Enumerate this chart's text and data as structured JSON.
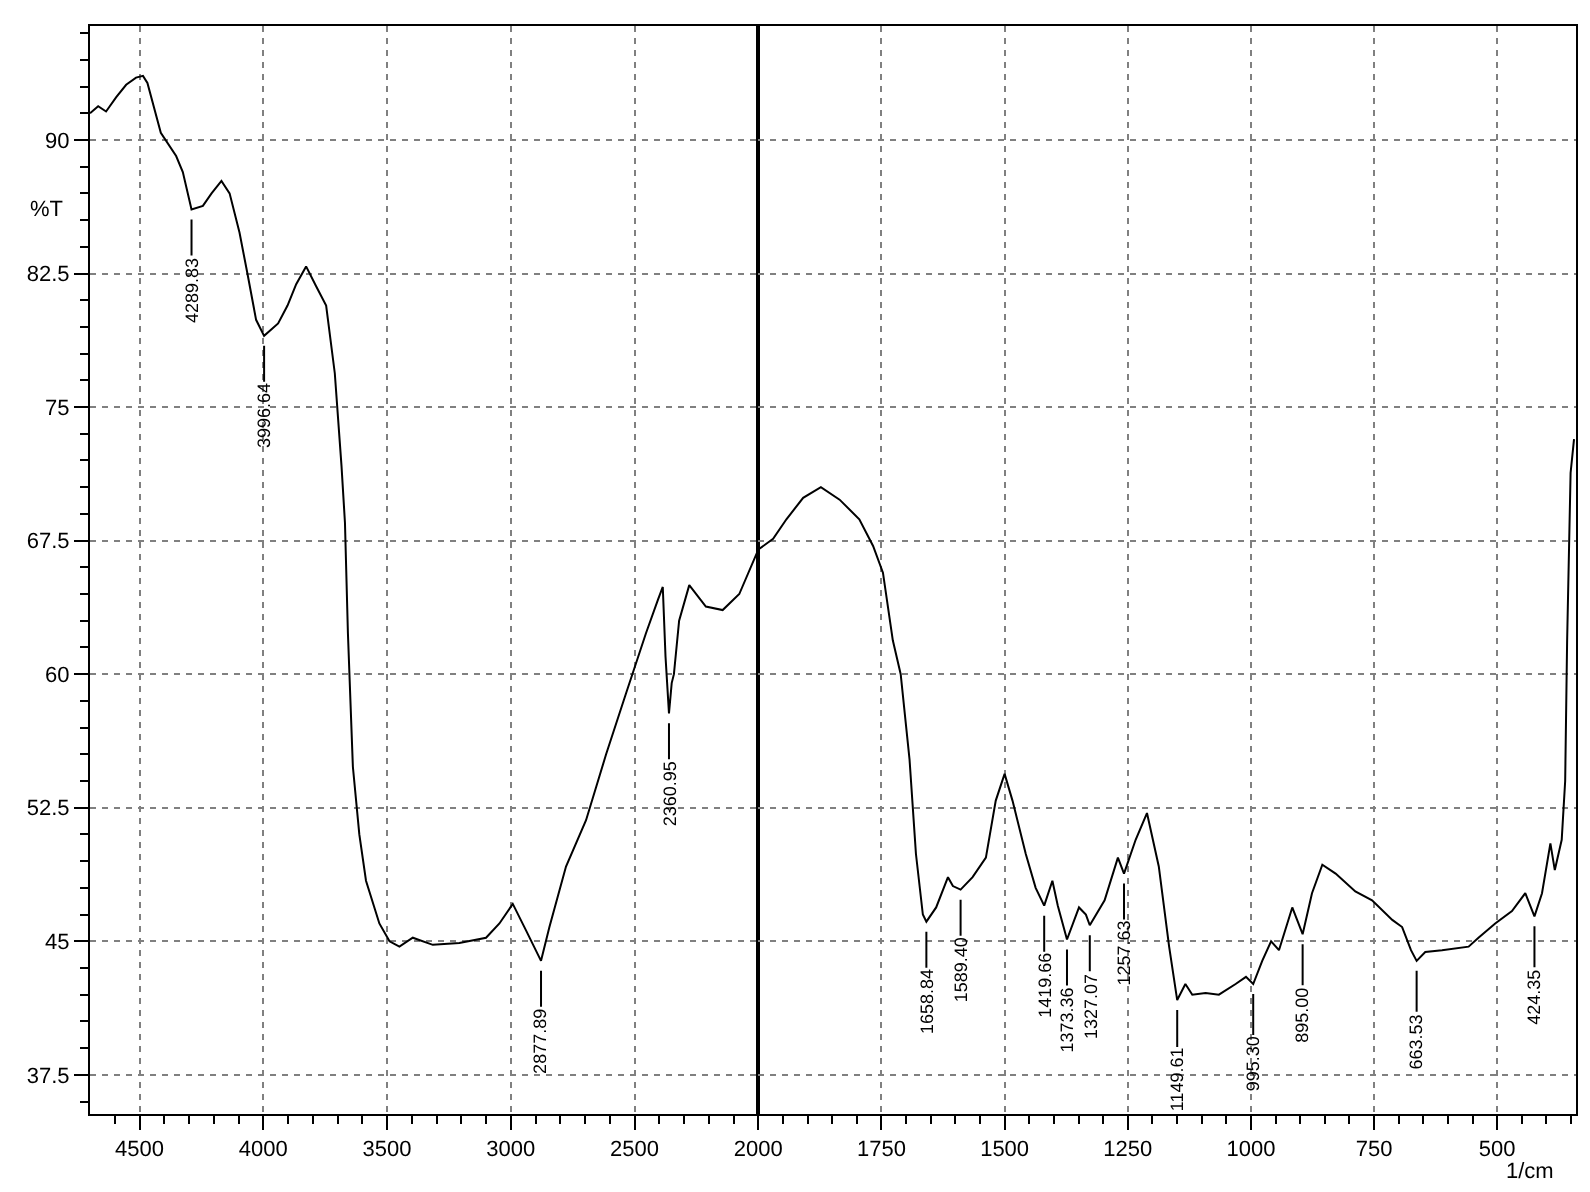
{
  "chart_data": [
    {
      "type": "line",
      "ylabel": "%T",
      "grid": true,
      "line_style": "solid",
      "xlim": [
        4700,
        2000
      ],
      "xticks": [
        {
          "value": 4600,
          "label": null
        },
        4500,
        {
          "value": 4400,
          "label": null
        },
        {
          "value": 4300,
          "label": null
        },
        {
          "value": 4200,
          "label": null
        },
        {
          "value": 4100,
          "label": null
        },
        4000,
        {
          "value": 3900,
          "label": null
        },
        {
          "value": 3800,
          "label": null
        },
        {
          "value": 3700,
          "label": null
        },
        {
          "value": 3600,
          "label": null
        },
        3500,
        {
          "value": 3400,
          "label": null
        },
        {
          "value": 3300,
          "label": null
        },
        {
          "value": 3200,
          "label": null
        },
        {
          "value": 3100,
          "label": null
        },
        3000,
        {
          "value": 2900,
          "label": null
        },
        {
          "value": 2800,
          "label": null
        },
        {
          "value": 2700,
          "label": null
        },
        {
          "value": 2600,
          "label": null
        },
        2500,
        {
          "value": 2400,
          "label": null
        },
        {
          "value": 2300,
          "label": null
        },
        {
          "value": 2200,
          "label": null
        },
        {
          "value": 2100,
          "label": null
        }
      ],
      "ylim": [
        35.3,
        96.4
      ],
      "yticks": [
        {
          "value": 36,
          "label": null
        },
        37.5,
        {
          "value": 39,
          "label": null
        },
        {
          "value": 40.5,
          "label": null
        },
        {
          "value": 42,
          "label": null
        },
        {
          "value": 43.5,
          "label": null
        },
        45,
        {
          "value": 46.5,
          "label": null
        },
        {
          "value": 48,
          "label": null
        },
        {
          "value": 49.5,
          "label": null
        },
        {
          "value": 51,
          "label": null
        },
        52.5,
        {
          "value": 54,
          "label": null
        },
        {
          "value": 55.5,
          "label": null
        },
        {
          "value": 57,
          "label": null
        },
        {
          "value": 58.5,
          "label": null
        },
        60,
        {
          "value": 61.5,
          "label": null
        },
        {
          "value": 63,
          "label": null
        },
        {
          "value": 64.5,
          "label": null
        },
        {
          "value": 66,
          "label": null
        },
        67.5,
        {
          "value": 69,
          "label": null
        },
        {
          "value": 70.5,
          "label": null
        },
        {
          "value": 72,
          "label": null
        },
        {
          "value": 73.5,
          "label": null
        },
        75,
        {
          "value": 76.5,
          "label": null
        },
        {
          "value": 78,
          "label": null
        },
        {
          "value": 79.5,
          "label": null
        },
        {
          "value": 81,
          "label": null
        },
        82.5,
        {
          "value": 84,
          "label": null
        },
        {
          "value": 85.5,
          "label": null
        },
        {
          "value": 87,
          "label": null
        },
        {
          "value": 88.5,
          "label": null
        },
        90,
        {
          "value": 91.5,
          "label": null
        },
        {
          "value": 93,
          "label": null
        },
        {
          "value": 94.5,
          "label": null
        },
        {
          "value": 96,
          "label": null
        }
      ],
      "series": [
        {
          "color": "#000000",
          "x": [
            4700,
            4667,
            4635,
            4594,
            4554,
            4514,
            4486,
            4468,
            4414,
            4352,
            4325,
            4289.83,
            4244,
            4209,
            4169,
            4136,
            4096,
            4064,
            4029,
            3996.64,
            3940,
            3902,
            3867,
            3827,
            3787,
            3746,
            3711,
            3684,
            3670,
            3658,
            3638,
            3612,
            3585,
            3531,
            3490,
            3450,
            3396,
            3315,
            3208,
            3100,
            3046,
            2992,
            2938,
            2877.89,
            2844,
            2777,
            2696,
            2615,
            2535,
            2454,
            2405,
            2386,
            2375,
            2360.95,
            2350,
            2341,
            2320,
            2279,
            2212,
            2144,
            2077,
            2000
          ],
          "values": [
            91.5,
            91.9,
            91.6,
            92.4,
            93.1,
            93.5,
            93.6,
            93.2,
            90.4,
            89.1,
            88.2,
            86.1,
            86.3,
            87.0,
            87.7,
            87.0,
            84.8,
            82.5,
            79.9,
            79.0,
            79.7,
            80.7,
            81.9,
            82.9,
            81.8,
            80.7,
            76.9,
            71.7,
            68.5,
            62.3,
            54.8,
            51.0,
            48.4,
            46.0,
            45.0,
            44.7,
            45.2,
            44.8,
            44.9,
            45.2,
            46.0,
            47.1,
            45.6,
            43.9,
            45.8,
            49.2,
            51.8,
            55.5,
            58.9,
            62.3,
            64.2,
            64.9,
            61.0,
            57.8,
            59.5,
            60.0,
            63.0,
            65.0,
            63.8,
            63.6,
            64.5,
            67.0
          ]
        }
      ],
      "annotations": [
        {
          "text": "4289.83",
          "x": 4289.83,
          "y": 86.1
        },
        {
          "text": "3996.64",
          "x": 3996.64,
          "y": 79.0
        },
        {
          "text": "2877.89",
          "x": 2877.89,
          "y": 43.9
        },
        {
          "text": "2360.95",
          "x": 2360.95,
          "y": 57.8
        }
      ]
    },
    {
      "type": "line",
      "xlabel": "1/cm",
      "grid": true,
      "line_style": "solid",
      "tick_labels": "x",
      "xlim": [
        2000,
        340
      ],
      "xticks": [
        2000,
        {
          "value": 1950,
          "label": null
        },
        {
          "value": 1900,
          "label": null
        },
        {
          "value": 1850,
          "label": null
        },
        {
          "value": 1800,
          "label": null
        },
        1750,
        {
          "value": 1700,
          "label": null
        },
        {
          "value": 1650,
          "label": null
        },
        {
          "value": 1600,
          "label": null
        },
        {
          "value": 1550,
          "label": null
        },
        1500,
        {
          "value": 1450,
          "label": null
        },
        {
          "value": 1400,
          "label": null
        },
        {
          "value": 1350,
          "label": null
        },
        {
          "value": 1300,
          "label": null
        },
        1250,
        {
          "value": 1200,
          "label": null
        },
        {
          "value": 1150,
          "label": null
        },
        {
          "value": 1100,
          "label": null
        },
        {
          "value": 1050,
          "label": null
        },
        1000,
        {
          "value": 950,
          "label": null
        },
        {
          "value": 900,
          "label": null
        },
        {
          "value": 850,
          "label": null
        },
        {
          "value": 800,
          "label": null
        },
        750,
        {
          "value": 700,
          "label": null
        },
        {
          "value": 650,
          "label": null
        },
        {
          "value": 600,
          "label": null
        },
        {
          "value": 550,
          "label": null
        },
        500,
        {
          "value": 450,
          "label": null
        },
        {
          "value": 400,
          "label": null
        },
        {
          "value": 350,
          "label": null
        }
      ],
      "ylim": [
        35.3,
        96.4
      ],
      "yticks": [
        37.5,
        45,
        52.5,
        60,
        67.5,
        75,
        82.5,
        90
      ],
      "series": [
        {
          "color": "#000000",
          "x": [
            2000,
            1970,
            1943,
            1909,
            1873,
            1835,
            1795,
            1767,
            1747,
            1727,
            1711,
            1693,
            1680,
            1666,
            1658.84,
            1639,
            1615,
            1605,
            1589.4,
            1565,
            1538,
            1518,
            1500,
            1484,
            1457,
            1437,
            1419.66,
            1403,
            1392,
            1373.36,
            1349,
            1335,
            1327.07,
            1297,
            1270,
            1257.63,
            1234,
            1211,
            1187,
            1166,
            1149.61,
            1133,
            1119,
            1092,
            1065,
            1031,
            1010,
            995.3,
            977,
            959,
            943,
            916,
            895.0,
            876,
            855,
            828,
            788,
            754,
            713,
            693,
            675,
            663.53,
            646,
            612,
            558,
            538,
            504,
            470,
            443,
            424.35,
            409,
            392,
            383,
            369,
            362,
            358,
            351,
            344
          ],
          "values": [
            67.0,
            67.6,
            68.7,
            69.9,
            70.5,
            69.8,
            68.7,
            67.2,
            65.7,
            61.9,
            60.0,
            55.2,
            49.9,
            46.5,
            46.1,
            46.9,
            48.6,
            48.1,
            47.9,
            48.6,
            49.7,
            52.9,
            54.4,
            52.9,
            49.9,
            48.0,
            47.0,
            48.4,
            47.0,
            45.1,
            46.9,
            46.5,
            45.9,
            47.3,
            49.7,
            48.8,
            50.7,
            52.2,
            49.2,
            44.7,
            41.7,
            42.6,
            42.0,
            42.1,
            42.0,
            42.6,
            43.0,
            42.6,
            43.9,
            45.0,
            44.5,
            46.9,
            45.4,
            47.7,
            49.3,
            48.8,
            47.8,
            47.3,
            46.2,
            45.8,
            44.5,
            43.9,
            44.4,
            44.5,
            44.7,
            45.2,
            46.0,
            46.7,
            47.7,
            46.4,
            47.7,
            50.5,
            49.0,
            50.7,
            54.0,
            61.9,
            71.3,
            73.2
          ]
        }
      ],
      "annotations": [
        {
          "text": "1658.84",
          "x": 1658.84,
          "y": 46.1
        },
        {
          "text": "1589.40",
          "x": 1589.4,
          "y": 47.9
        },
        {
          "text": "1419.66",
          "x": 1419.66,
          "y": 47.0
        },
        {
          "text": "1373.36",
          "x": 1373.36,
          "y": 45.1
        },
        {
          "text": "1327.07",
          "x": 1327.07,
          "y": 45.9
        },
        {
          "text": "1257.63",
          "x": 1257.63,
          "y": 48.8
        },
        {
          "text": "1149.61",
          "x": 1149.61,
          "y": 41.7
        },
        {
          "text": "995.30",
          "x": 995.3,
          "y": 42.6
        },
        {
          "text": "895.00",
          "x": 895.0,
          "y": 45.4
        },
        {
          "text": "663.53",
          "x": 663.53,
          "y": 43.9
        },
        {
          "text": "424.35",
          "x": 424.35,
          "y": 46.4
        }
      ]
    }
  ]
}
